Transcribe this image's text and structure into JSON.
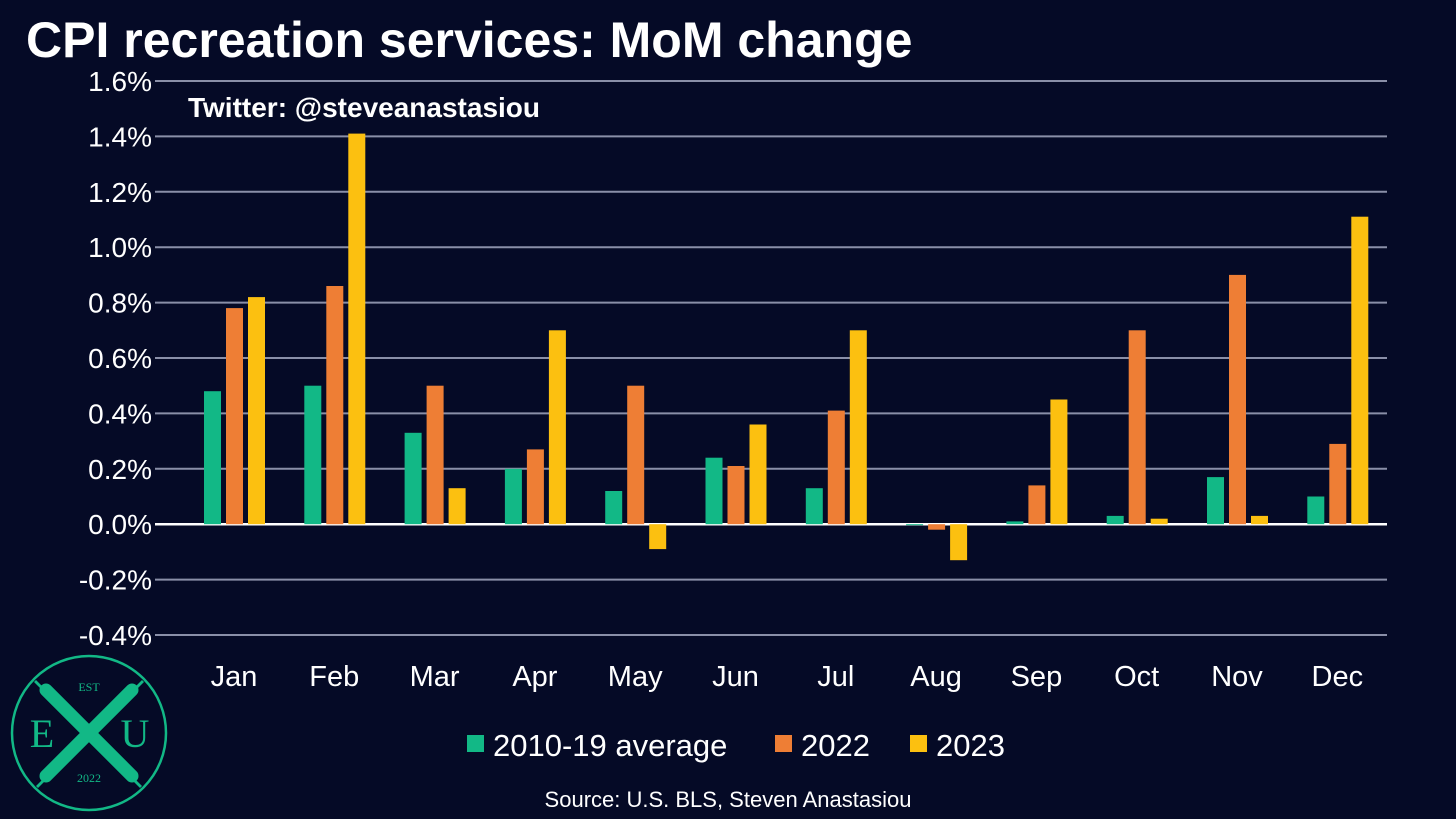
{
  "chart_data": {
    "type": "bar",
    "title": "CPI recreation services: MoM change",
    "watermark": "Twitter: @steveanastasiou",
    "source": "Source: U.S. BLS, Steven Anastasiou",
    "categories": [
      "Jan",
      "Feb",
      "Mar",
      "Apr",
      "May",
      "Jun",
      "Jul",
      "Aug",
      "Sep",
      "Oct",
      "Nov",
      "Dec"
    ],
    "series": [
      {
        "name": "2010-19 average",
        "color": "#12b886",
        "values": [
          0.48,
          0.5,
          0.33,
          0.2,
          0.12,
          0.24,
          0.13,
          0.0,
          0.01,
          0.03,
          0.17,
          0.1
        ]
      },
      {
        "name": "2022",
        "color": "#ee7e35",
        "values": [
          0.78,
          0.86,
          0.5,
          0.27,
          0.5,
          0.21,
          0.41,
          -0.02,
          0.14,
          0.7,
          0.9,
          0.29
        ]
      },
      {
        "name": "2023",
        "color": "#fcc010",
        "values": [
          0.82,
          1.41,
          0.13,
          0.7,
          -0.09,
          0.36,
          0.7,
          -0.13,
          0.45,
          0.02,
          0.03,
          1.11
        ]
      }
    ],
    "ylim": [
      -0.4,
      1.6
    ],
    "yticks": [
      "1.6%",
      "1.4%",
      "1.2%",
      "1.0%",
      "0.8%",
      "0.6%",
      "0.4%",
      "0.2%",
      "0.0%",
      "-0.2%",
      "-0.4%"
    ],
    "ytick_values": [
      1.6,
      1.4,
      1.2,
      1.0,
      0.8,
      0.6,
      0.4,
      0.2,
      0.0,
      -0.2,
      -0.4
    ],
    "grid": true,
    "legend_position": "bottom",
    "xlabel": "",
    "ylabel": ""
  },
  "logo": {
    "top_text": "EST",
    "left_letter": "E",
    "center_letter": "X",
    "right_letter": "U",
    "bottom_text": "2022",
    "color": "#12b886"
  },
  "colors": {
    "background": "#050a26",
    "grid": "#8a8fa8",
    "zero_line": "#ffffff",
    "text": "#ffffff"
  }
}
